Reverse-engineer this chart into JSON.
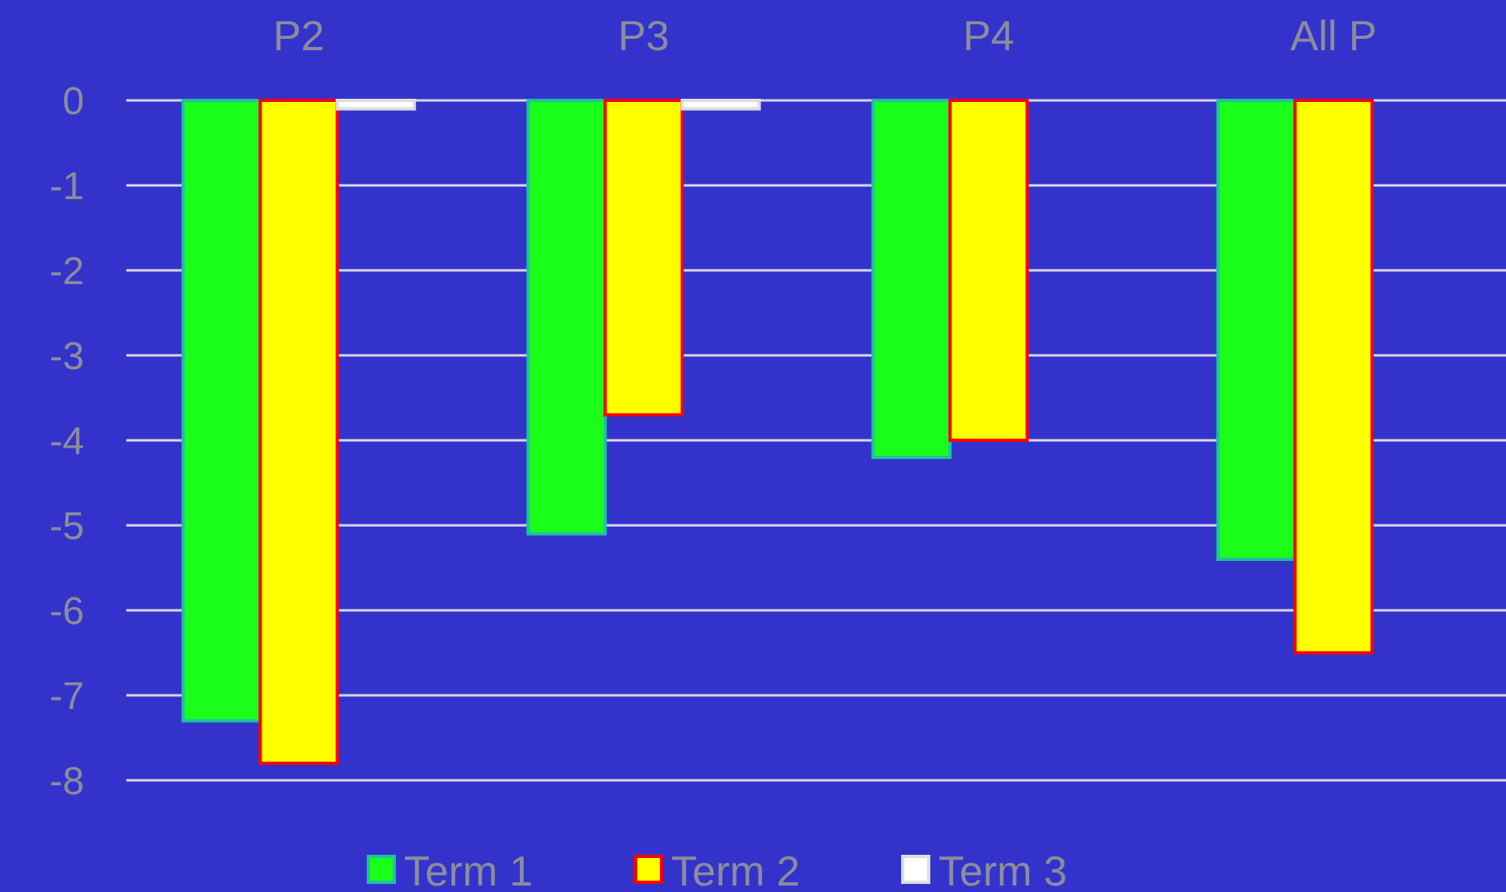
{
  "chart_data": {
    "type": "bar",
    "categories": [
      "P2",
      "P3",
      "P4",
      "All P"
    ],
    "series": [
      {
        "name": "Term 1",
        "color": "#1aff1a",
        "values": [
          -7.3,
          -5.1,
          -4.2,
          -5.4
        ]
      },
      {
        "name": "Term 2",
        "color": "#ffff00",
        "values": [
          -7.8,
          -3.7,
          -4.0,
          -6.5
        ]
      },
      {
        "name": "Term 3",
        "color": "#ffffff",
        "values": [
          -0.1,
          -0.1,
          null,
          null
        ]
      }
    ],
    "ylim": [
      -8,
      0
    ],
    "yticks": [
      0,
      -1,
      -2,
      -3,
      -4,
      -5,
      -6,
      -7,
      -8
    ],
    "grid": true,
    "legend": "bottom"
  }
}
